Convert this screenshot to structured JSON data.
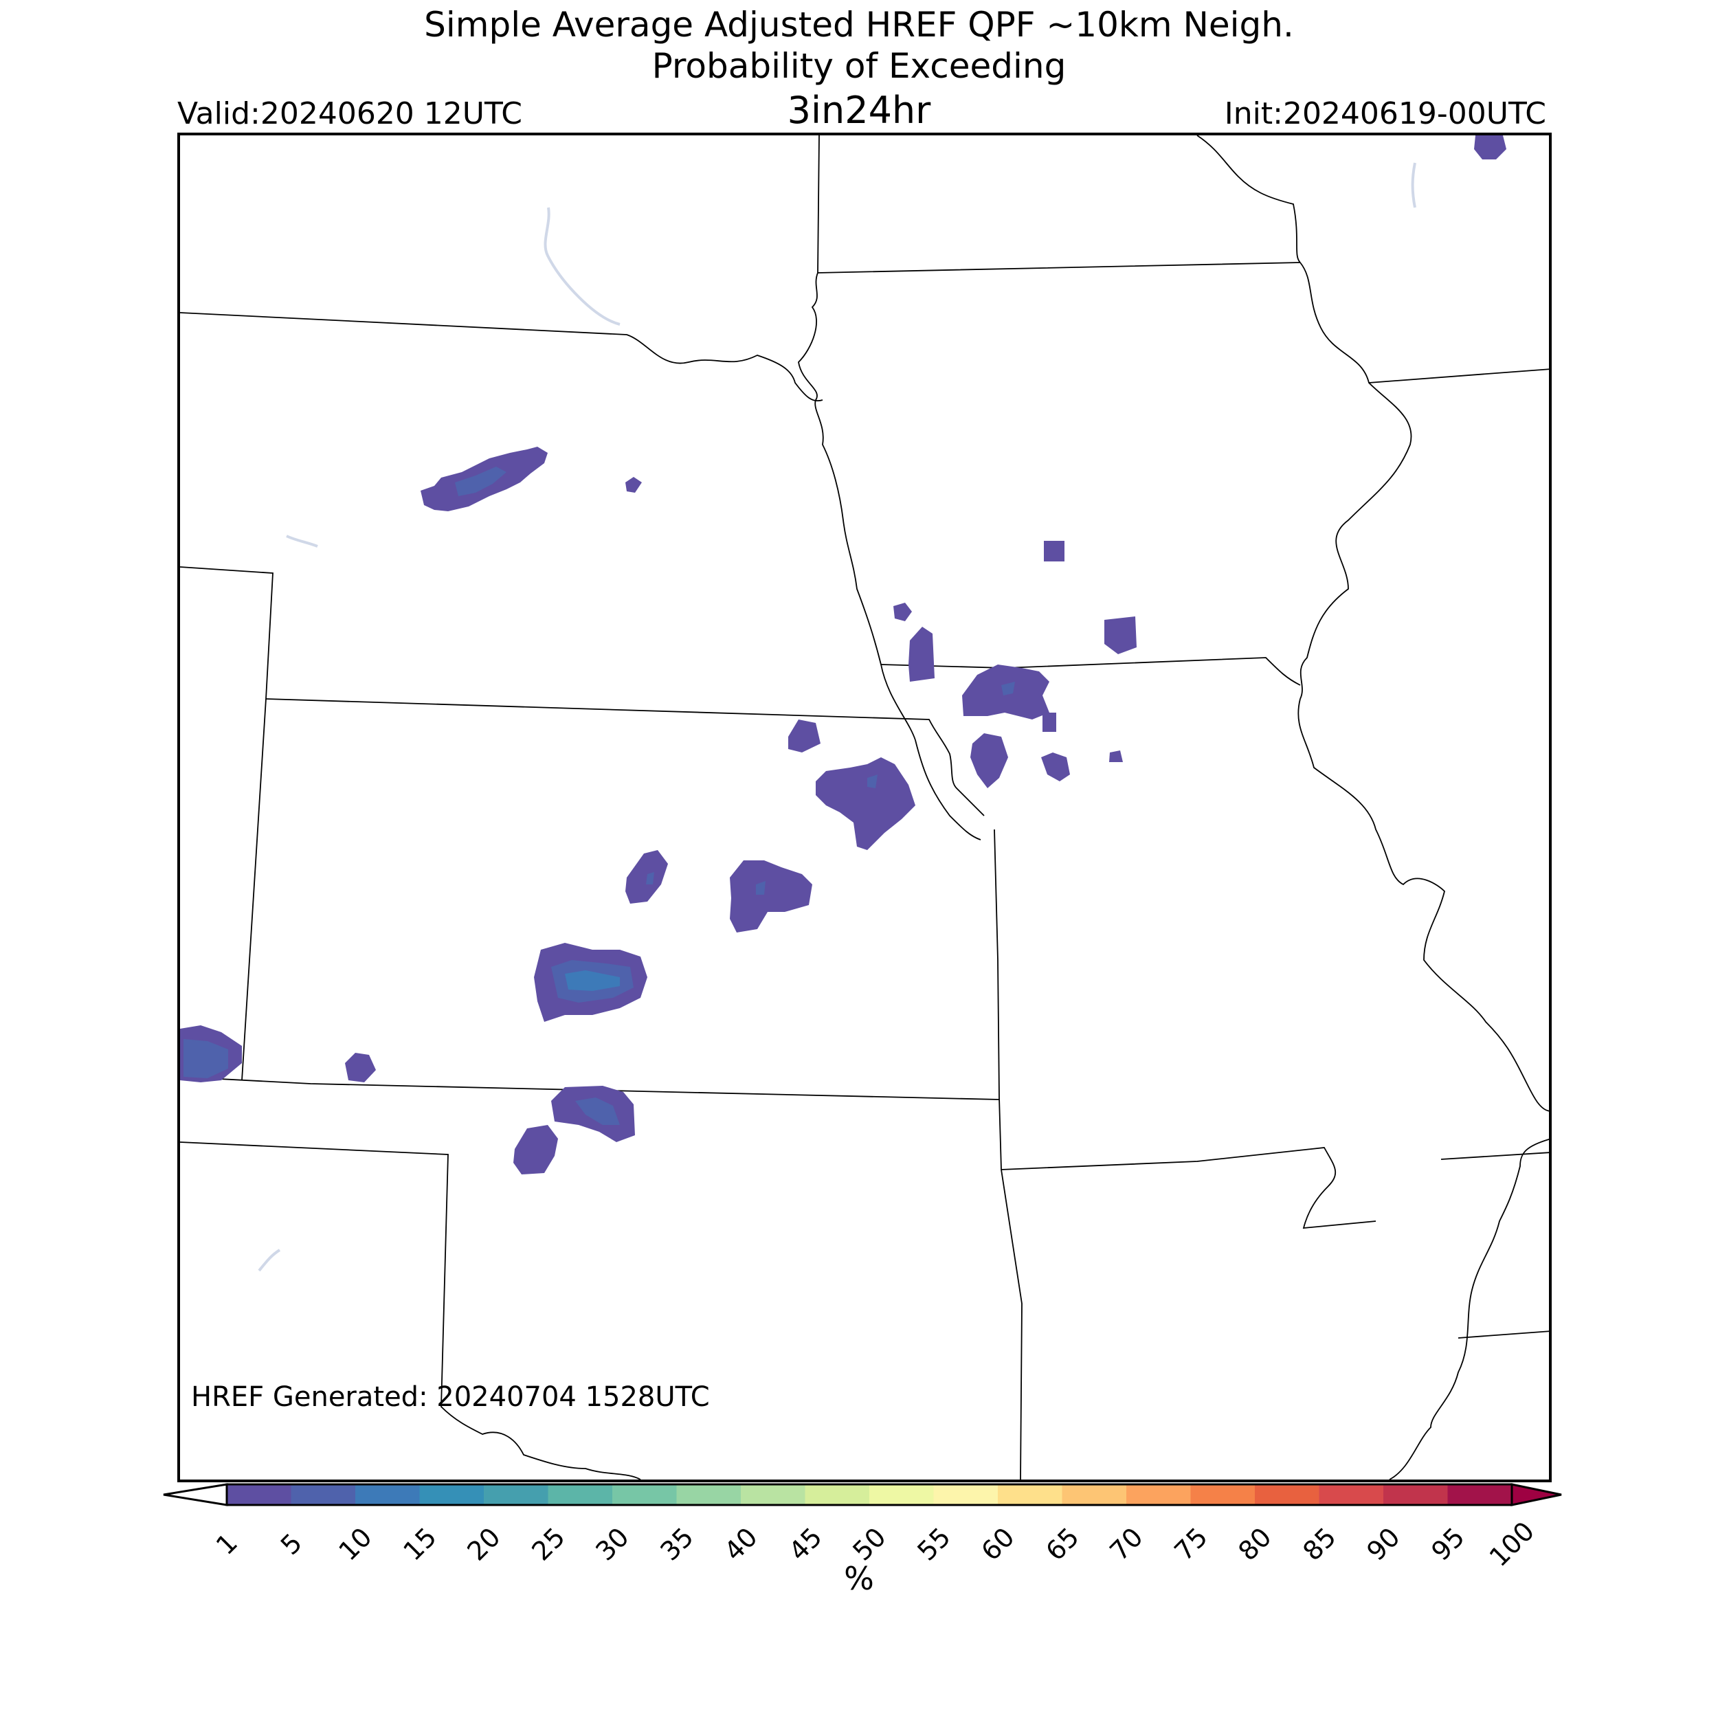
{
  "header": {
    "title_line1": "Simple Average Adjusted HREF QPF ~10km Neigh.",
    "title_line2": "Probability of Exceeding",
    "title_line3": "3in24hr",
    "valid": "Valid:20240620 12UTC",
    "init": "Init:20240619-00UTC"
  },
  "footer": {
    "generated": "HREF Generated: 20240704 1528UTC"
  },
  "colorbar": {
    "units": "%",
    "ticks": [
      "1",
      "5",
      "10",
      "15",
      "20",
      "25",
      "30",
      "35",
      "40",
      "45",
      "50",
      "55",
      "60",
      "65",
      "70",
      "75",
      "80",
      "85",
      "90",
      "95",
      "100"
    ],
    "colors": [
      "#5e4fa2",
      "#4f62ac",
      "#3d7ab8",
      "#3590b7",
      "#459fae",
      "#5cb5a8",
      "#77c6a6",
      "#98d5a4",
      "#b9e3a2",
      "#d6ee9b",
      "#eef8a4",
      "#fdf5ab",
      "#fee08b",
      "#fdc574",
      "#fca35e",
      "#f58148",
      "#e8613f",
      "#d84a4c",
      "#c1344c",
      "#a2134a"
    ],
    "under_color": "#ffffff",
    "over_color": "#9e0142"
  },
  "map": {
    "probability_colors": {
      "p1": "#5e4fa2",
      "p5": "#4f62ac",
      "p10": "#3d7ab8"
    },
    "water_color": "#d0d8e8"
  }
}
